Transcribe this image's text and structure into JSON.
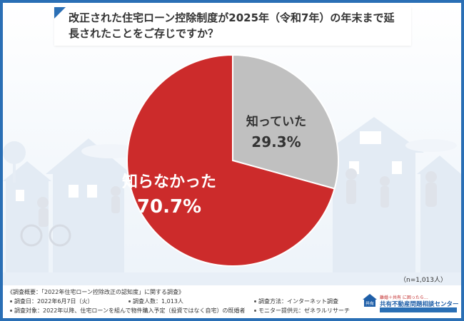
{
  "title": "改正された住宅ローン控除制度が2025年（令和7年）の年末まで延長されたことをご存じですか？",
  "chart_data": {
    "type": "pie",
    "title": "改正された住宅ローン控除制度が2025年（令和7年）の年末まで延長されたことをご存じですか？",
    "slices": [
      {
        "label": "知っていた",
        "value": 29.3,
        "value_text": "29.3%",
        "color": "#c0c0c0",
        "label_color": "#333333"
      },
      {
        "label": "知らなかった",
        "value": 70.7,
        "value_text": "70.7%",
        "color": "#cc2b2b",
        "label_color": "#ffffff"
      }
    ],
    "start": "12 o'clock",
    "direction": "clockwise",
    "legend": "none",
    "sample_note": "（n=1,013人）"
  },
  "footer": {
    "overview": "《調査概要：「2022年住宅ローン控除改正の認知度」に関する調査》",
    "date": "調査日：2022年6月7日（火）",
    "count": "調査人数：1,013人",
    "method": "調査方法：インターネット調査",
    "target": "調査対象：2022年以降、住宅ローンを組んで物件購入予定（投資ではなく自宅）の既婚者",
    "provider": "モニター提供元：ゼネラルリサーチ"
  },
  "logo": {
    "badge_text": "共有",
    "tagline": "離婚＋共有 に困ったら…",
    "name": "共有不動産問題相談センター"
  },
  "colors": {
    "frame": "#2a6fb5",
    "accent_red": "#cc2b2b",
    "gray": "#c0c0c0"
  }
}
